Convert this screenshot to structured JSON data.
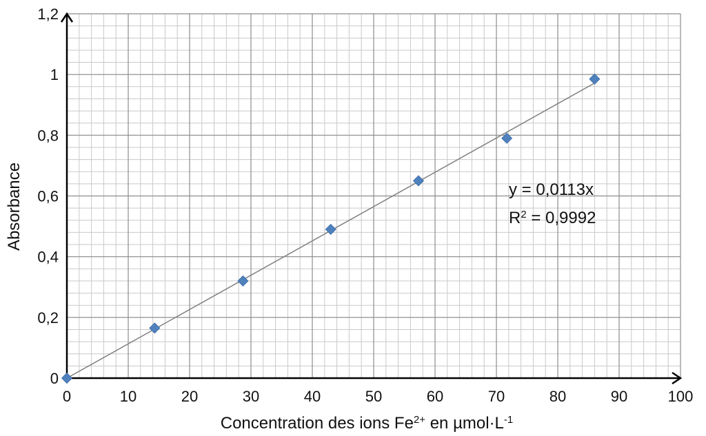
{
  "chart_data": {
    "type": "scatter",
    "xlabel": {
      "base": "Concentration des ions Fe",
      "sup1": "2+",
      "mid": " en µmol·L",
      "sup2": "-1"
    },
    "ylabel": "Absorbance",
    "xlim": [
      0,
      100
    ],
    "ylim": [
      0,
      1.2
    ],
    "x_ticks": [
      0,
      10,
      20,
      30,
      40,
      50,
      60,
      70,
      80,
      90,
      100
    ],
    "x_tick_labels": [
      "0",
      "10",
      "20",
      "30",
      "40",
      "50",
      "60",
      "70",
      "80",
      "90",
      "100"
    ],
    "y_ticks": [
      0,
      0.2,
      0.4,
      0.6,
      0.8,
      1,
      1.2
    ],
    "y_tick_labels": [
      "0",
      "0,2",
      "0,4",
      "0,6",
      "0,8",
      "1",
      "1,2"
    ],
    "minor_grid_x_step": 2,
    "minor_grid_y_step": 0.04,
    "grid": true,
    "series": [
      {
        "x": [
          0,
          14.3,
          28.7,
          43.0,
          57.3,
          71.7,
          86.0
        ],
        "y": [
          0,
          0.165,
          0.32,
          0.49,
          0.65,
          0.79,
          0.985
        ],
        "marker": "diamond",
        "color": "#4f81bd"
      }
    ],
    "trendline": {
      "slope": 0.0113,
      "x_range": [
        0,
        86
      ],
      "color": "#808080",
      "equation": {
        "line1": "y = 0,0113x",
        "line2_prefix": "R",
        "line2_sup": "2",
        "line2_suffix": " = 0,9992"
      }
    }
  }
}
